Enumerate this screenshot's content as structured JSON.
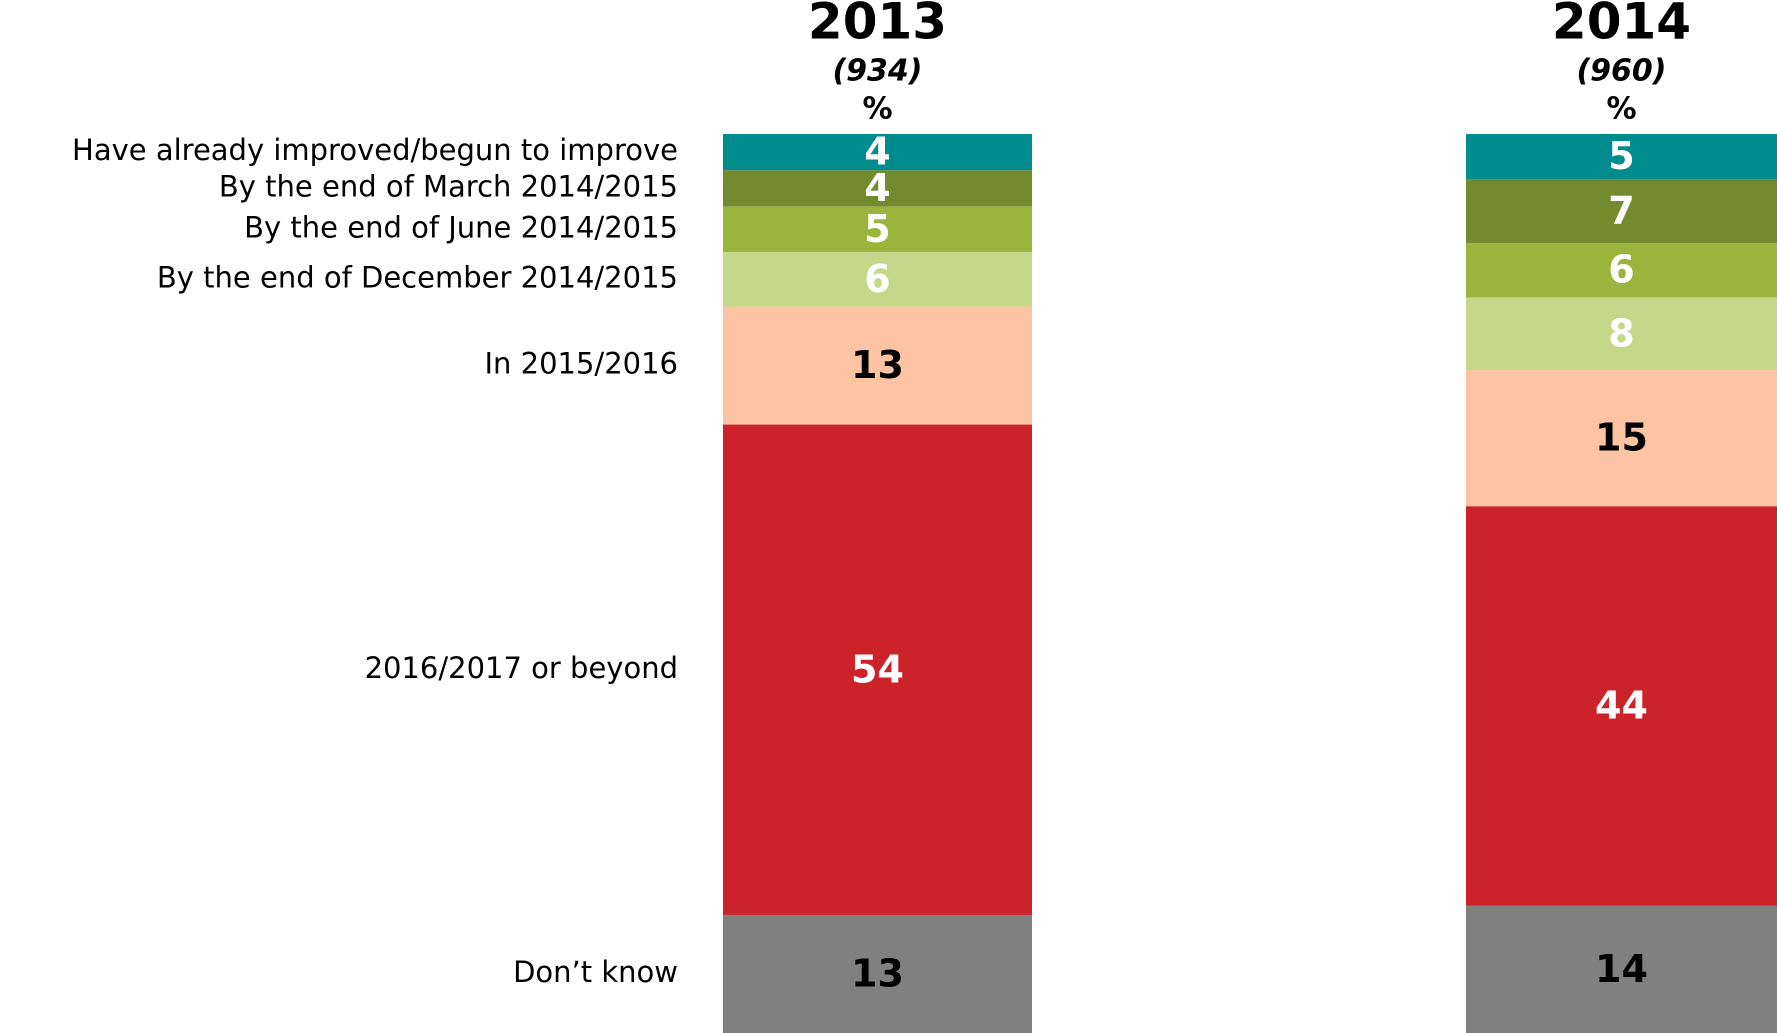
{
  "chart_data": {
    "type": "stacked_bar",
    "categories": [
      "2013",
      "2014"
    ],
    "bases": [
      "(934)",
      "(960)"
    ],
    "unit": "%",
    "series": [
      {
        "name": "Have already improved/begun to improve",
        "color": "#008c8c",
        "label_color": "#ffffff",
        "values": [
          4,
          5
        ]
      },
      {
        "name": "By the end of March 2014/2015",
        "color": "#738a2e",
        "label_color": "#ffffff",
        "values": [
          4,
          7
        ]
      },
      {
        "name": "By the end of June 2014/2015",
        "color": "#9bb53c",
        "label_color": "#ffffff",
        "values": [
          5,
          6
        ]
      },
      {
        "name": "By the end of December 2014/2015",
        "color": "#c5d88a",
        "label_color": "#ffffff",
        "values": [
          6,
          8
        ]
      },
      {
        "name": "In 2015/2016",
        "color": "#fdc4a4",
        "label_color": "#000000",
        "values": [
          13,
          15
        ]
      },
      {
        "name": "2016/2017 or beyond",
        "color": "#cc2229",
        "label_color": "#ffffff",
        "values": [
          54,
          44
        ]
      },
      {
        "name": "Don’t know",
        "color": "#808080",
        "label_color": "#000000",
        "values": [
          13,
          14
        ]
      }
    ]
  }
}
